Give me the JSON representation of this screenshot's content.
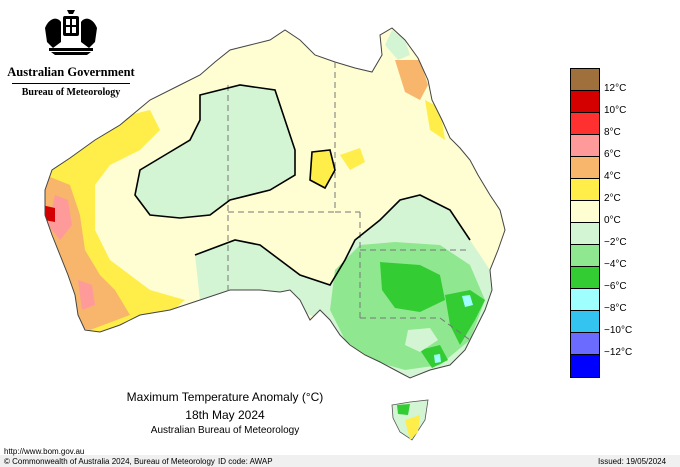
{
  "header": {
    "government": "Australian Government",
    "bureau": "Bureau of Meteorology"
  },
  "legend": {
    "colors": [
      "#a0703c",
      "#d40000",
      "#ff3030",
      "#ff9a9a",
      "#f7b66b",
      "#ffed4a",
      "#fffdd2",
      "#d4f5d4",
      "#8fe88f",
      "#33cc33",
      "#9fffff",
      "#33c5f0",
      "#6b6bff",
      "#0000ff"
    ],
    "labels": [
      "12°C",
      "10°C",
      "8°C",
      "6°C",
      "4°C",
      "2°C",
      "0°C",
      "−2°C",
      "−4°C",
      "−6°C",
      "−8°C",
      "−10°C",
      "−12°C"
    ]
  },
  "title": {
    "main": "Maximum Temperature Anomaly (°C)",
    "date": "18th May 2024",
    "source": "Australian Bureau of Meteorology"
  },
  "footer": {
    "url": "http://www.bom.gov.au",
    "copyright": "© Commonwealth of Australia 2024, Bureau of Meteorology",
    "id_code": "ID code: AWAP",
    "issued": "Issued: 19/05/2024"
  }
}
